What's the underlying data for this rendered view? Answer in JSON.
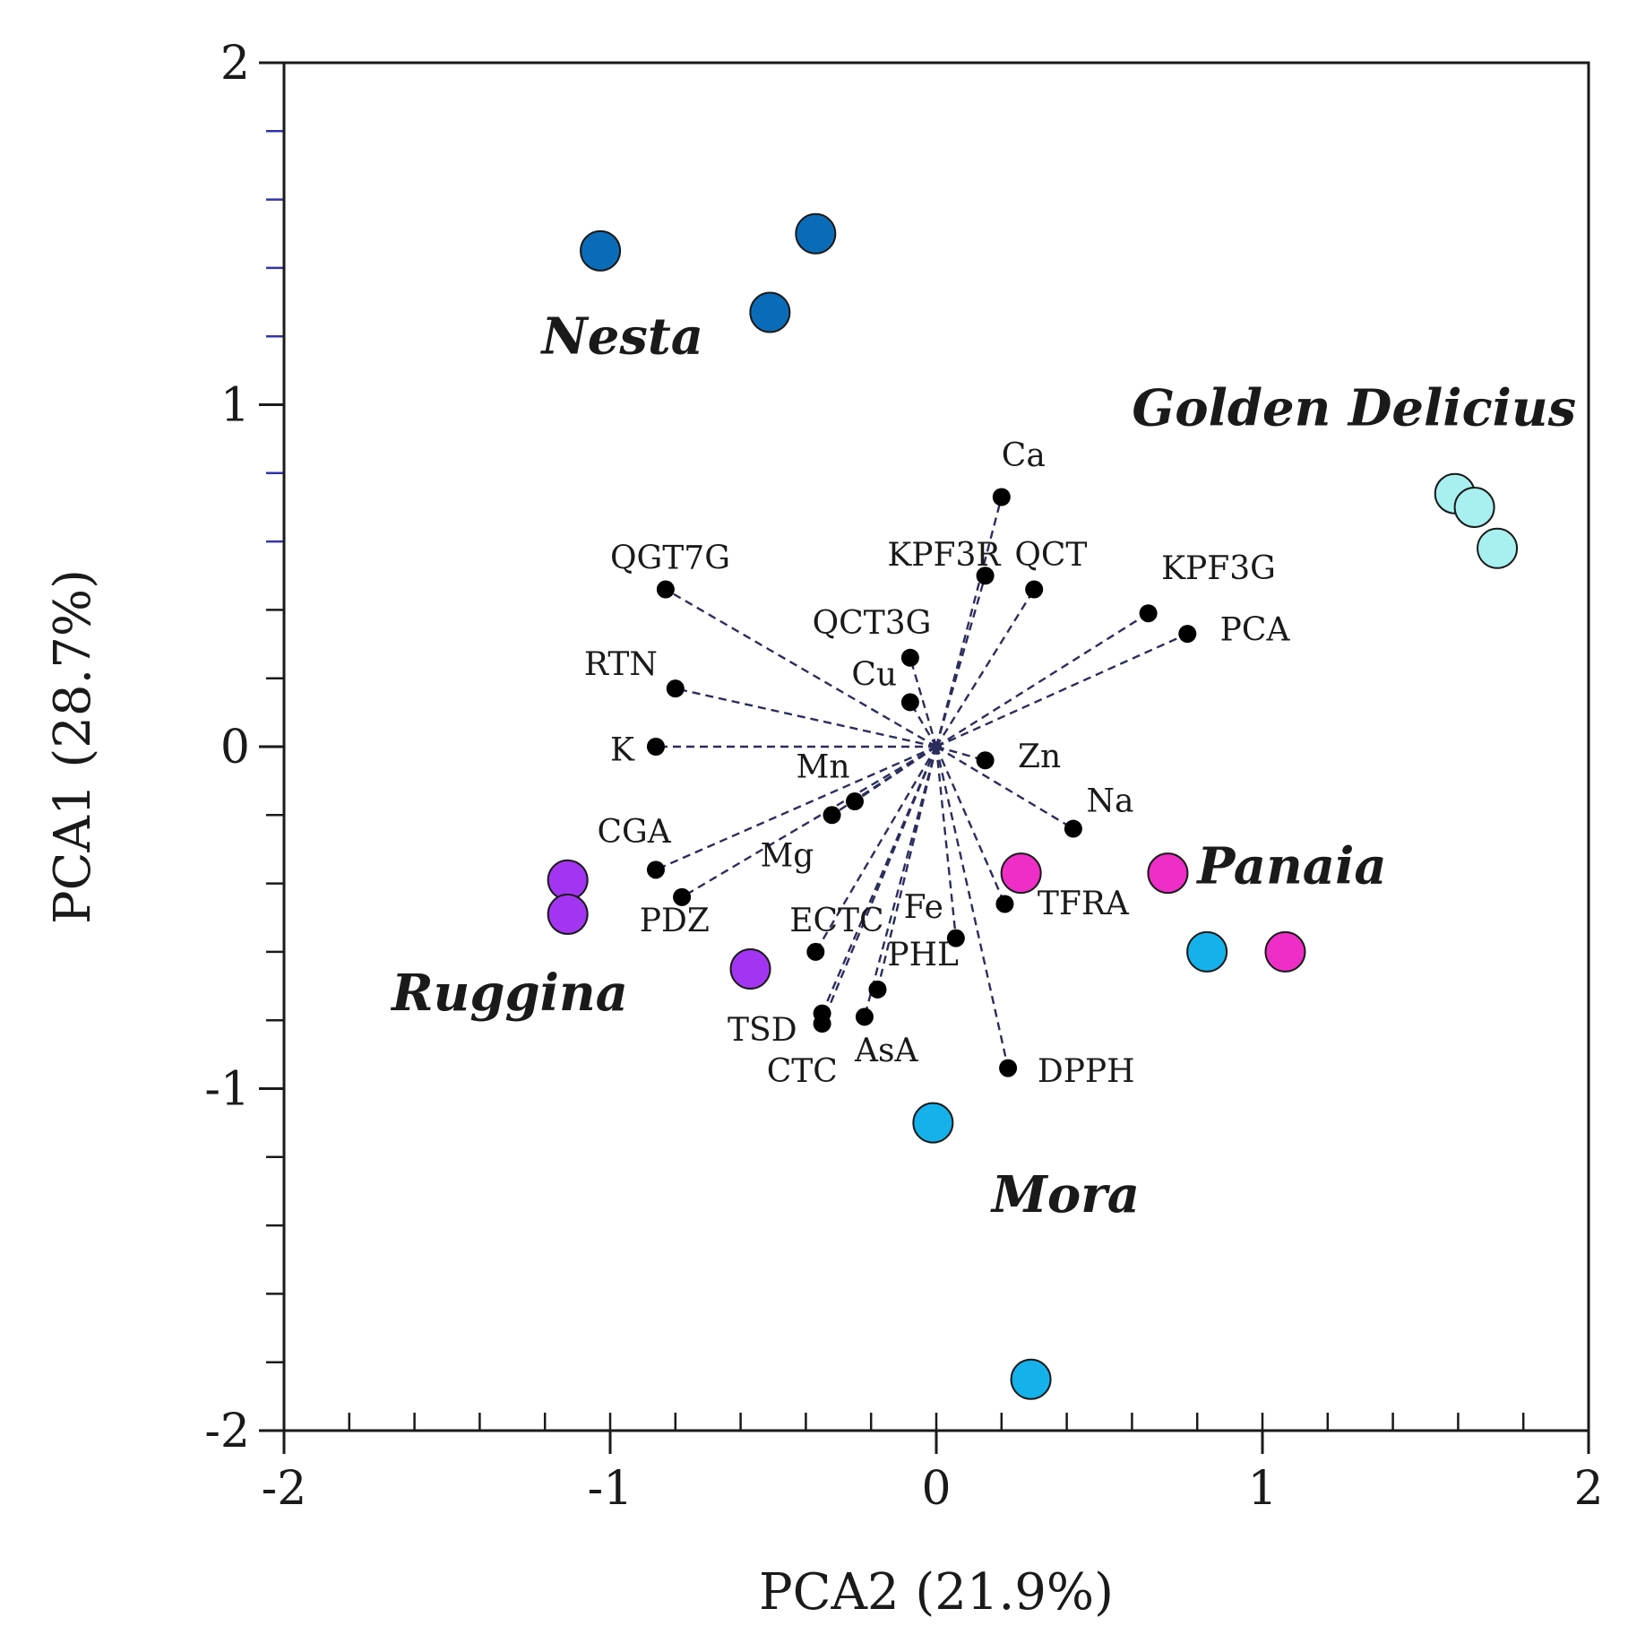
{
  "chart_data": {
    "type": "scatter",
    "subtype": "biplot",
    "xlabel": "PCA2 (21.9%)",
    "ylabel": "PCA1 (28.7%)",
    "xlim": [
      -2,
      2
    ],
    "ylim": [
      -2,
      2
    ],
    "x_ticks": [
      -2,
      -1,
      0,
      1,
      2
    ],
    "y_ticks": [
      -2,
      -1,
      0,
      1,
      2
    ],
    "x_tick_labels": [
      "-2",
      "-1",
      "0",
      "1",
      "2"
    ],
    "y_tick_labels": [
      "-2",
      "-1",
      "0",
      "1",
      "2"
    ],
    "x_minor_step": 0.2,
    "y_minor_step": 0.2,
    "grid": false,
    "colors": {
      "axis": "#1a1a1a",
      "minor_tick_top": "#3333aa",
      "loading_line": "#2b2d5c",
      "loading_dot": "#000000"
    },
    "groups": [
      {
        "name": "Nesta",
        "color": "#0a6cb8",
        "points": [
          [
            -1.03,
            1.45
          ],
          [
            -0.37,
            1.5
          ],
          [
            -0.51,
            1.27
          ]
        ]
      },
      {
        "name": "Golden Delicius",
        "color": "#a8f0f0",
        "points": [
          [
            1.59,
            0.74
          ],
          [
            1.65,
            0.7
          ],
          [
            1.72,
            0.58
          ]
        ]
      },
      {
        "name": "Panaia",
        "color": "#ee2ec6",
        "points": [
          [
            0.26,
            -0.37
          ],
          [
            0.71,
            -0.37
          ],
          [
            1.07,
            -0.6
          ]
        ]
      },
      {
        "name": "Mora",
        "color": "#15b1ea",
        "points": [
          [
            0.83,
            -0.6
          ],
          [
            -0.01,
            -1.1
          ],
          [
            0.29,
            -1.85
          ]
        ]
      },
      {
        "name": "Ruggina",
        "color": "#a335f2",
        "points": [
          [
            -1.13,
            -0.39
          ],
          [
            -1.13,
            -0.49
          ],
          [
            -0.57,
            -0.65
          ]
        ]
      }
    ],
    "loadings": [
      {
        "name": "Ca",
        "x": 0.2,
        "y": 0.73
      },
      {
        "name": "KPF3R",
        "x": 0.15,
        "y": 0.5
      },
      {
        "name": "QCT",
        "x": 0.3,
        "y": 0.46
      },
      {
        "name": "QGT7G",
        "x": -0.83,
        "y": 0.46
      },
      {
        "name": "KPF3G",
        "x": 0.65,
        "y": 0.39
      },
      {
        "name": "PCA",
        "x": 0.77,
        "y": 0.33
      },
      {
        "name": "QCT3G",
        "x": -0.08,
        "y": 0.26
      },
      {
        "name": "RTN",
        "x": -0.8,
        "y": 0.17
      },
      {
        "name": "Cu",
        "x": -0.08,
        "y": 0.13
      },
      {
        "name": "K",
        "x": -0.86,
        "y": 0.0
      },
      {
        "name": "Zn",
        "x": 0.15,
        "y": -0.04
      },
      {
        "name": "Mn",
        "x": -0.25,
        "y": -0.16
      },
      {
        "name": "Na",
        "x": 0.42,
        "y": -0.24
      },
      {
        "name": "Mg",
        "x": -0.32,
        "y": -0.2
      },
      {
        "name": "CGA",
        "x": -0.86,
        "y": -0.36
      },
      {
        "name": "PDZ",
        "x": -0.78,
        "y": -0.44
      },
      {
        "name": "TFRA",
        "x": 0.21,
        "y": -0.46
      },
      {
        "name": "Fe",
        "x": 0.06,
        "y": -0.56
      },
      {
        "name": "ECTC",
        "x": -0.37,
        "y": -0.6
      },
      {
        "name": "PHL",
        "x": -0.18,
        "y": -0.71
      },
      {
        "name": "TSD",
        "x": -0.35,
        "y": -0.78
      },
      {
        "name": "AsA",
        "x": -0.22,
        "y": -0.79
      },
      {
        "name": "CTC",
        "x": -0.35,
        "y": -0.81
      },
      {
        "name": "DPPH",
        "x": 0.22,
        "y": -0.94
      }
    ],
    "loading_label_positions": {
      "Ca": [
        0.2,
        0.82
      ],
      "KPF3R": [
        -0.15,
        0.53
      ],
      "QCT": [
        0.24,
        0.53
      ],
      "QGT7G": [
        -1.0,
        0.52
      ],
      "KPF3G": [
        0.69,
        0.49
      ],
      "PCA": [
        0.87,
        0.31
      ],
      "QCT3G": [
        -0.38,
        0.33
      ],
      "RTN": [
        -1.08,
        0.21
      ],
      "Cu": [
        -0.26,
        0.18
      ],
      "K": [
        -1.0,
        -0.04
      ],
      "Zn": [
        0.25,
        -0.06
      ],
      "Mn": [
        -0.43,
        -0.09
      ],
      "Na": [
        0.46,
        -0.19
      ],
      "Mg": [
        -0.54,
        -0.35
      ],
      "CGA": [
        -1.04,
        -0.28
      ],
      "PDZ": [
        -0.91,
        -0.54
      ],
      "TFRA": [
        0.31,
        -0.49
      ],
      "Fe": [
        -0.1,
        -0.5
      ],
      "ECTC": [
        -0.45,
        -0.54
      ],
      "PHL": [
        -0.15,
        -0.64
      ],
      "TSD": [
        -0.64,
        -0.86
      ],
      "AsA": [
        -0.25,
        -0.92
      ],
      "CTC": [
        -0.52,
        -0.98
      ],
      "DPPH": [
        0.31,
        -0.98
      ]
    },
    "group_label_positions": {
      "Nesta": [
        -1.21,
        1.15
      ],
      "Golden Delicius": [
        0.6,
        0.94
      ],
      "Panaia": [
        0.8,
        -0.4
      ],
      "Mora": [
        0.17,
        -1.36
      ],
      "Ruggina": [
        -1.67,
        -0.77
      ]
    }
  }
}
